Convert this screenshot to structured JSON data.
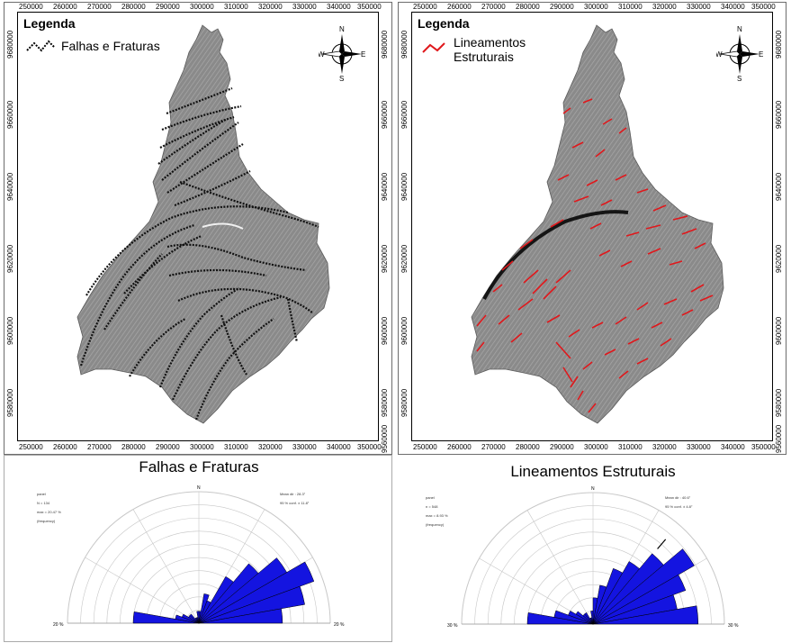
{
  "maps": [
    {
      "id": "falhas",
      "legend_title": "Legenda",
      "legend_item": "Falhas e Fraturas",
      "line_color": "#000000",
      "x_ticks": [
        "250000",
        "260000",
        "270000",
        "280000",
        "290000",
        "300000",
        "310000",
        "320000",
        "330000",
        "340000",
        "350000"
      ],
      "y_ticks": [
        "9680000",
        "9660000",
        "9640000",
        "9620000",
        "9600000",
        "9580000",
        "9560000"
      ]
    },
    {
      "id": "lineamentos",
      "legend_title": "Legenda",
      "legend_item_line1": "Lineamentos",
      "legend_item_line2": "Estruturais",
      "line_color": "#e0181c",
      "x_ticks": [
        "250000",
        "260000",
        "270000",
        "280000",
        "290000",
        "300000",
        "310000",
        "320000",
        "330000",
        "340000",
        "350000"
      ],
      "y_ticks": [
        "9680000",
        "9660000",
        "9640000",
        "9620000",
        "9600000",
        "9580000",
        "9560000"
      ]
    }
  ],
  "compass": {
    "n": "N",
    "s": "S",
    "e": "E",
    "w": "W"
  },
  "roses": [
    {
      "id": "rose-falhas",
      "title": "Falhas e Fraturas",
      "north": "N",
      "left_scale": "20 %",
      "right_scale": "20 %",
      "meta_left": [
        "panel",
        "N = 134",
        "max = 20.47 %",
        "(frequency)"
      ],
      "meta_right": [
        "Mean dir : 28.3°",
        "95 % conf. ± 11.8°"
      ],
      "petal_color": "#1414e0",
      "chart_data": {
        "type": "rose",
        "sectors_deg": [
          5,
          15,
          25,
          35,
          45,
          55,
          65,
          75,
          85,
          275,
          285,
          295,
          305,
          315,
          325,
          335,
          345,
          355
        ],
        "values_pct": [
          2,
          5,
          4,
          9,
          13,
          17,
          20.5,
          18,
          14,
          11,
          4,
          3,
          2,
          2,
          1,
          1,
          1,
          2
        ]
      }
    },
    {
      "id": "rose-lineamentos",
      "title": "Lineamentos Estruturais",
      "north": "N",
      "left_scale": "30 %",
      "right_scale": "30 %",
      "meta_left": [
        "panel",
        "n = 548",
        "max = 8.93 %",
        "(frequency)"
      ],
      "meta_right": [
        "Mean dir : 40.6°",
        "95 % conf. ± 4.8°"
      ],
      "petal_color": "#1414e0",
      "chart_data": {
        "type": "rose",
        "sectors_deg": [
          5,
          15,
          25,
          35,
          45,
          55,
          65,
          75,
          85,
          275,
          285,
          295,
          305,
          315,
          325,
          335,
          345,
          355
        ],
        "values_pct": [
          2,
          3,
          4.5,
          5.5,
          7,
          8.9,
          7.5,
          6.5,
          8,
          5,
          3,
          2,
          1.5,
          1,
          1,
          0.5,
          0.5,
          1
        ]
      }
    }
  ]
}
